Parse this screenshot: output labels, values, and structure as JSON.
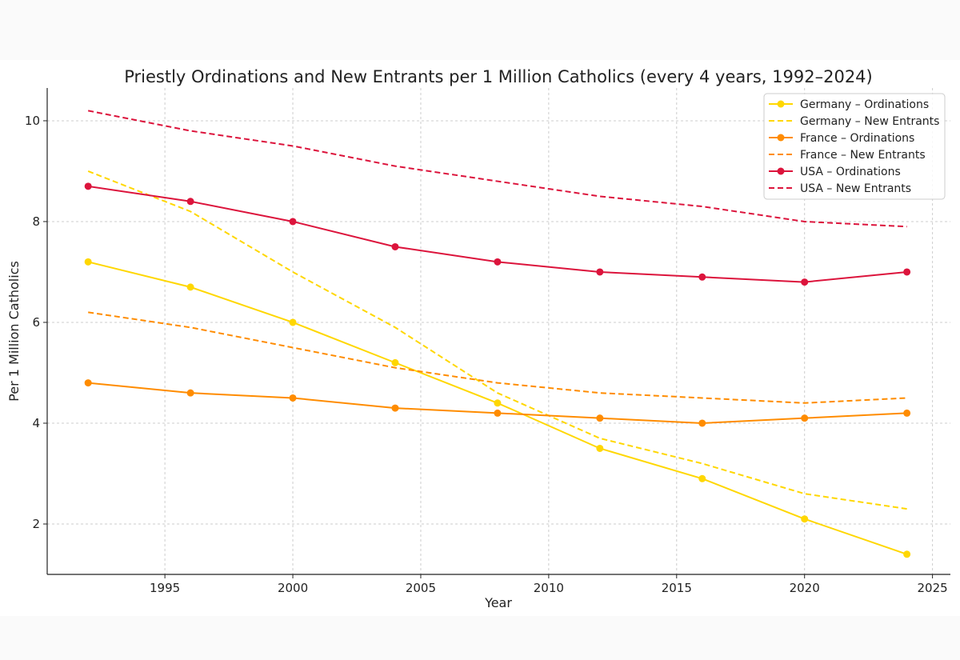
{
  "chart_data": {
    "type": "line",
    "title": "Priestly Ordinations and New Entrants per 1 Million Catholics (every 4 years, 1992–2024)",
    "xlabel": "Year",
    "ylabel": "Per 1 Million Catholics",
    "xlim": [
      1990.4,
      2025.7
    ],
    "ylim": [
      1.0,
      10.65
    ],
    "xticks": [
      1995,
      2000,
      2005,
      2010,
      2015,
      2020,
      2025
    ],
    "yticks": [
      2,
      4,
      6,
      8,
      10
    ],
    "grid": true,
    "legend_position": "top-right",
    "x": [
      1992,
      1996,
      2000,
      2004,
      2008,
      2012,
      2016,
      2020,
      2024
    ],
    "series": [
      {
        "name": "Germany – Ordinations",
        "color": "#FFD700",
        "style": "solid",
        "marker": true,
        "values": [
          7.2,
          6.7,
          6.0,
          5.2,
          4.4,
          3.5,
          2.9,
          2.1,
          1.4
        ]
      },
      {
        "name": "Germany – New Entrants",
        "color": "#FFD700",
        "style": "dashed",
        "marker": false,
        "values": [
          9.0,
          8.2,
          7.0,
          5.9,
          4.6,
          3.7,
          3.2,
          2.6,
          2.3
        ]
      },
      {
        "name": "France – Ordinations",
        "color": "#FF8C00",
        "style": "solid",
        "marker": true,
        "values": [
          4.8,
          4.6,
          4.5,
          4.3,
          4.2,
          4.1,
          4.0,
          4.1,
          4.2
        ]
      },
      {
        "name": "France – New Entrants",
        "color": "#FF8C00",
        "style": "dashed",
        "marker": false,
        "values": [
          6.2,
          5.9,
          5.5,
          5.1,
          4.8,
          4.6,
          4.5,
          4.4,
          4.5
        ]
      },
      {
        "name": "USA – Ordinations",
        "color": "#DC143C",
        "style": "solid",
        "marker": true,
        "values": [
          8.7,
          8.4,
          8.0,
          7.5,
          7.2,
          7.0,
          6.9,
          6.8,
          7.0
        ]
      },
      {
        "name": "USA – New Entrants",
        "color": "#DC143C",
        "style": "dashed",
        "marker": false,
        "values": [
          10.2,
          9.8,
          9.5,
          9.1,
          8.8,
          8.5,
          8.3,
          8.0,
          7.9
        ]
      }
    ]
  }
}
